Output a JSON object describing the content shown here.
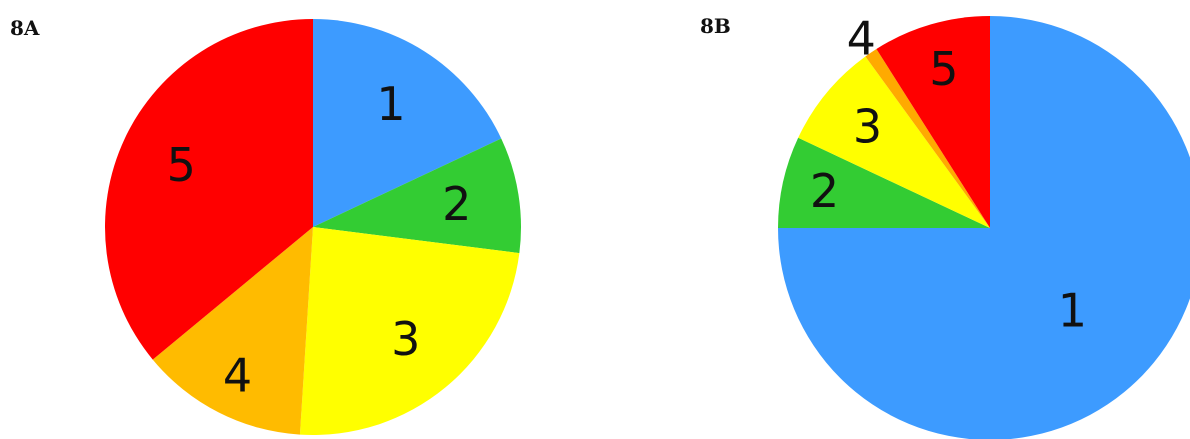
{
  "chart_data": [
    {
      "type": "pie",
      "panel_label": "8A",
      "start_angle_deg": 0,
      "direction": "clockwise",
      "slices": [
        {
          "label": "1",
          "value": 18,
          "color": "#3d9bff"
        },
        {
          "label": "2",
          "value": 9,
          "color": "#33cc33"
        },
        {
          "label": "3",
          "value": 24,
          "color": "#ffff00"
        },
        {
          "label": "4",
          "value": 13,
          "color": "#ffbb00"
        },
        {
          "label": "5",
          "value": 36,
          "color": "#ff0000"
        }
      ]
    },
    {
      "type": "pie",
      "panel_label": "8B",
      "start_angle_deg": 0,
      "direction": "clockwise",
      "slices": [
        {
          "label": "1",
          "value": 75,
          "color": "#3d9bff"
        },
        {
          "label": "2",
          "value": 7,
          "color": "#33cc33"
        },
        {
          "label": "3",
          "value": 8,
          "color": "#ffff00"
        },
        {
          "label": "4",
          "value": 1,
          "color": "#ffaa00"
        },
        {
          "label": "5",
          "value": 9,
          "color": "#ff0000"
        }
      ]
    }
  ]
}
